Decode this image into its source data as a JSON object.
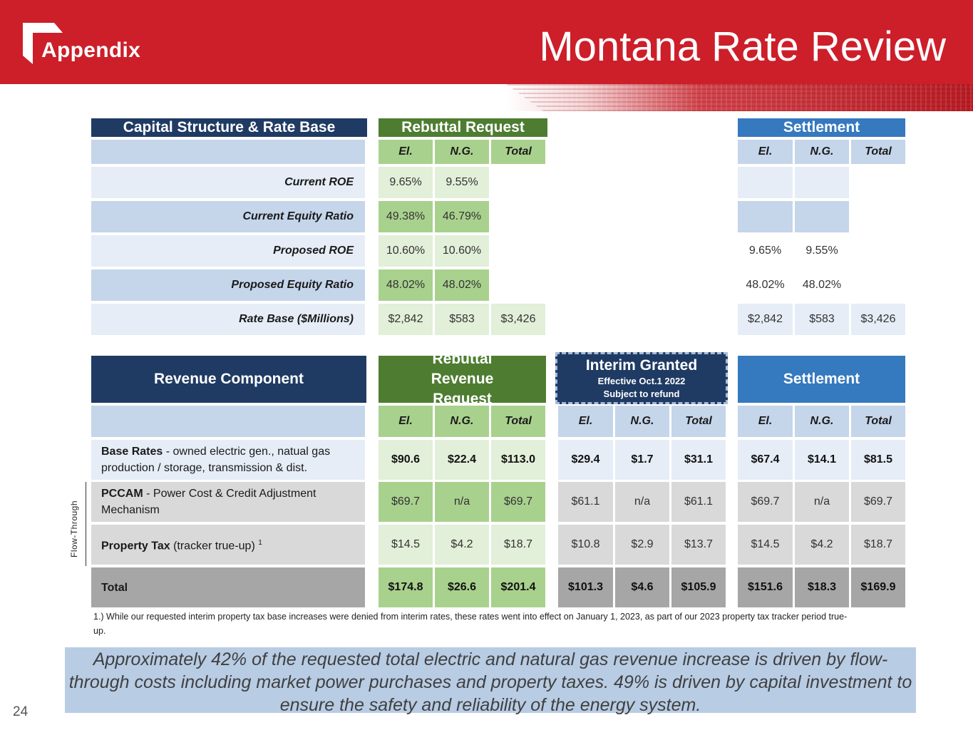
{
  "header": {
    "section": "Appendix",
    "title": "Montana Rate Review",
    "accent_color": "#cc1f2a"
  },
  "capital_table": {
    "title": "Capital Structure & Rate Base",
    "rebuttal_title": "Rebuttal Request",
    "settlement_title": "Settlement",
    "col_headers": [
      "El.",
      "N.G.",
      "Total"
    ],
    "rows": [
      {
        "label": "Current ROE",
        "reb": [
          "9.65%",
          "9.55%",
          ""
        ],
        "set": [
          "",
          "",
          ""
        ]
      },
      {
        "label": "Current Equity Ratio",
        "reb": [
          "49.38%",
          "46.79%",
          ""
        ],
        "set": [
          "",
          "",
          ""
        ]
      },
      {
        "label": "Proposed ROE",
        "reb": [
          "10.60%",
          "10.60%",
          ""
        ],
        "set": [
          "9.65%",
          "9.55%",
          ""
        ]
      },
      {
        "label": "Proposed Equity Ratio",
        "reb": [
          "48.02%",
          "48.02%",
          ""
        ],
        "set": [
          "48.02%",
          "48.02%",
          ""
        ]
      },
      {
        "label": "Rate Base ($Millions)",
        "reb": [
          "$2,842",
          "$583",
          "$3,426"
        ],
        "set": [
          "$2,842",
          "$583",
          "$3,426"
        ]
      }
    ]
  },
  "revenue_table": {
    "title": "Revenue Component",
    "rebuttal_title": "Rebuttal Revenue Request",
    "interim_title": "Interim Granted",
    "interim_line1": "Effective Oct.1 2022",
    "interim_line2": "Subject to refund",
    "settlement_title": "Settlement",
    "col_headers": [
      "El.",
      "N.G.",
      "Total"
    ],
    "rows": [
      {
        "name": "Base Rates",
        "desc": " - owned electric gen., natual gas production / storage, transmission & dist.",
        "sup": "",
        "reb": [
          "$90.6",
          "$22.4",
          "$113.0"
        ],
        "int": [
          "$29.4",
          "$1.7",
          "$31.1"
        ],
        "set": [
          "$67.4",
          "$14.1",
          "$81.5"
        ]
      },
      {
        "name": "PCCAM",
        "desc": " - Power Cost & Credit Adjustment Mechanism",
        "sup": "",
        "reb": [
          "$69.7",
          "n/a",
          "$69.7"
        ],
        "int": [
          "$61.1",
          "n/a",
          "$61.1"
        ],
        "set": [
          "$69.7",
          "n/a",
          "$69.7"
        ]
      },
      {
        "name": "Property Tax",
        "desc": " (tracker true-up)",
        "sup": "1",
        "reb": [
          "$14.5",
          "$4.2",
          "$18.7"
        ],
        "int": [
          "$10.8",
          "$2.9",
          "$13.7"
        ],
        "set": [
          "$14.5",
          "$4.2",
          "$18.7"
        ]
      },
      {
        "name": "Total",
        "desc": "",
        "sup": "",
        "reb": [
          "$174.8",
          "$26.6",
          "$201.4"
        ],
        "int": [
          "$101.3",
          "$4.6",
          "$105.9"
        ],
        "set": [
          "$151.6",
          "$18.3",
          "$169.9"
        ]
      }
    ],
    "flow_through_label": "Flow-Through"
  },
  "footnote": "1.) While our requested interim property tax base increases were denied from interim rates, these rates went into effect on January 1, 2023, as part of our 2023 property tax tracker period true-up.",
  "summary": "Approximately 42% of the requested total electric and natural gas revenue increase is driven by flow-through costs including market power purchases and property taxes. 49% is driven by capital investment to ensure the safety and reliability of the energy system.",
  "page_number": "24"
}
